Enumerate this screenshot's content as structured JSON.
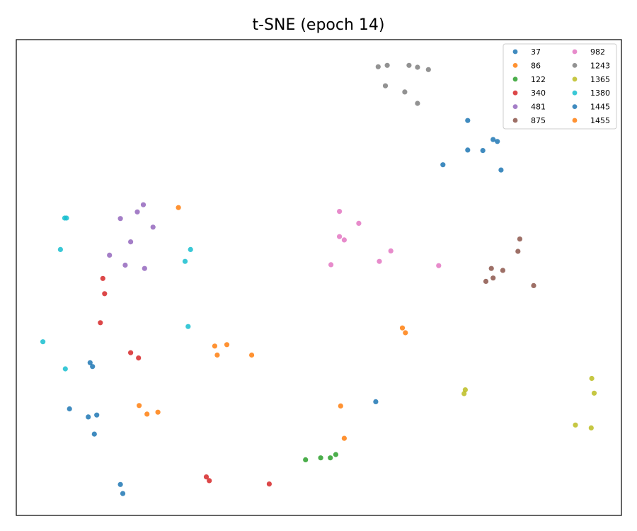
{
  "chart_data": {
    "type": "scatter",
    "title": "t-SNE (epoch 14)",
    "xlabel": "",
    "ylabel": "",
    "axis_ticks": "none",
    "grid": false,
    "xlim": [
      0,
      100
    ],
    "ylim": [
      0,
      100
    ],
    "legend": {
      "placement": "top-right",
      "columns": 2
    },
    "series": [
      {
        "name": "37",
        "color": "#1f77b4",
        "points": [
          [
            12.2,
            32.1
          ],
          [
            12.6,
            31.3
          ]
        ]
      },
      {
        "name": "86",
        "color": "#ff7f0e",
        "points": [
          [
            63.8,
            39.4
          ],
          [
            64.3,
            38.4
          ]
        ]
      },
      {
        "name": "122",
        "color": "#2ca02c",
        "points": [
          [
            47.8,
            11.7
          ],
          [
            50.3,
            12.1
          ],
          [
            51.9,
            12.1
          ],
          [
            52.8,
            12.8
          ]
        ]
      },
      {
        "name": "340",
        "color": "#d62728",
        "points": [
          [
            14.3,
            49.8
          ],
          [
            14.6,
            46.6
          ],
          [
            13.9,
            40.5
          ],
          [
            18.9,
            34.2
          ],
          [
            20.2,
            33.1
          ],
          [
            31.4,
            8.1
          ],
          [
            31.9,
            7.3
          ],
          [
            41.8,
            6.6
          ]
        ]
      },
      {
        "name": "481",
        "color": "#9467bd",
        "points": [
          [
            21.0,
            65.3
          ],
          [
            17.2,
            62.4
          ],
          [
            20.0,
            63.8
          ],
          [
            22.6,
            60.6
          ],
          [
            18.9,
            57.5
          ],
          [
            15.4,
            54.7
          ],
          [
            18.0,
            52.6
          ],
          [
            21.2,
            51.9
          ]
        ]
      },
      {
        "name": "875",
        "color": "#8c564b",
        "points": [
          [
            83.2,
            58.1
          ],
          [
            82.9,
            55.5
          ],
          [
            80.4,
            51.5
          ],
          [
            78.5,
            51.9
          ],
          [
            78.8,
            49.9
          ],
          [
            77.6,
            49.2
          ],
          [
            85.5,
            48.3
          ]
        ]
      },
      {
        "name": "982",
        "color": "#e377c2",
        "points": [
          [
            53.4,
            63.9
          ],
          [
            56.6,
            61.4
          ],
          [
            53.4,
            58.6
          ],
          [
            54.2,
            57.9
          ],
          [
            61.9,
            55.6
          ],
          [
            60.0,
            53.4
          ],
          [
            52.0,
            52.7
          ],
          [
            69.8,
            52.5
          ]
        ]
      },
      {
        "name": "1243",
        "color": "#7f7f7f",
        "points": [
          [
            59.8,
            94.3
          ],
          [
            61.3,
            94.6
          ],
          [
            64.9,
            94.6
          ],
          [
            66.3,
            94.2
          ],
          [
            68.1,
            93.7
          ],
          [
            61.0,
            90.3
          ],
          [
            64.2,
            89.0
          ],
          [
            66.3,
            86.6
          ]
        ]
      },
      {
        "name": "1365",
        "color": "#bcbd22",
        "points": [
          [
            95.1,
            28.8
          ],
          [
            95.5,
            25.7
          ],
          [
            74.2,
            26.4
          ],
          [
            74.0,
            25.6
          ],
          [
            92.4,
            19.0
          ],
          [
            95.0,
            18.4
          ]
        ]
      },
      {
        "name": "1380",
        "color": "#17becf",
        "points": [
          [
            8.0,
            62.5
          ],
          [
            8.3,
            62.5
          ],
          [
            7.3,
            55.9
          ],
          [
            28.8,
            55.9
          ],
          [
            27.9,
            53.4
          ],
          [
            28.4,
            39.7
          ],
          [
            4.4,
            36.5
          ],
          [
            8.1,
            30.8
          ]
        ]
      },
      {
        "name": "1445",
        "color": "#1f77b4",
        "points": [
          [
            74.6,
            83.0
          ],
          [
            78.8,
            79.0
          ],
          [
            79.5,
            78.6
          ],
          [
            74.6,
            76.8
          ],
          [
            77.1,
            76.7
          ],
          [
            70.5,
            73.7
          ],
          [
            80.1,
            72.6
          ],
          [
            59.4,
            23.9
          ],
          [
            8.8,
            22.4
          ],
          [
            13.3,
            21.1
          ],
          [
            11.9,
            20.7
          ],
          [
            12.9,
            17.1
          ],
          [
            17.2,
            6.5
          ],
          [
            17.6,
            4.6
          ]
        ]
      },
      {
        "name": "1455",
        "color": "#ff7f0e",
        "points": [
          [
            26.8,
            64.7
          ],
          [
            34.8,
            35.9
          ],
          [
            32.8,
            35.6
          ],
          [
            33.2,
            33.7
          ],
          [
            38.9,
            33.7
          ],
          [
            20.3,
            23.1
          ],
          [
            23.4,
            21.7
          ],
          [
            21.6,
            21.3
          ],
          [
            53.6,
            23.0
          ],
          [
            54.2,
            16.2
          ]
        ]
      }
    ]
  }
}
